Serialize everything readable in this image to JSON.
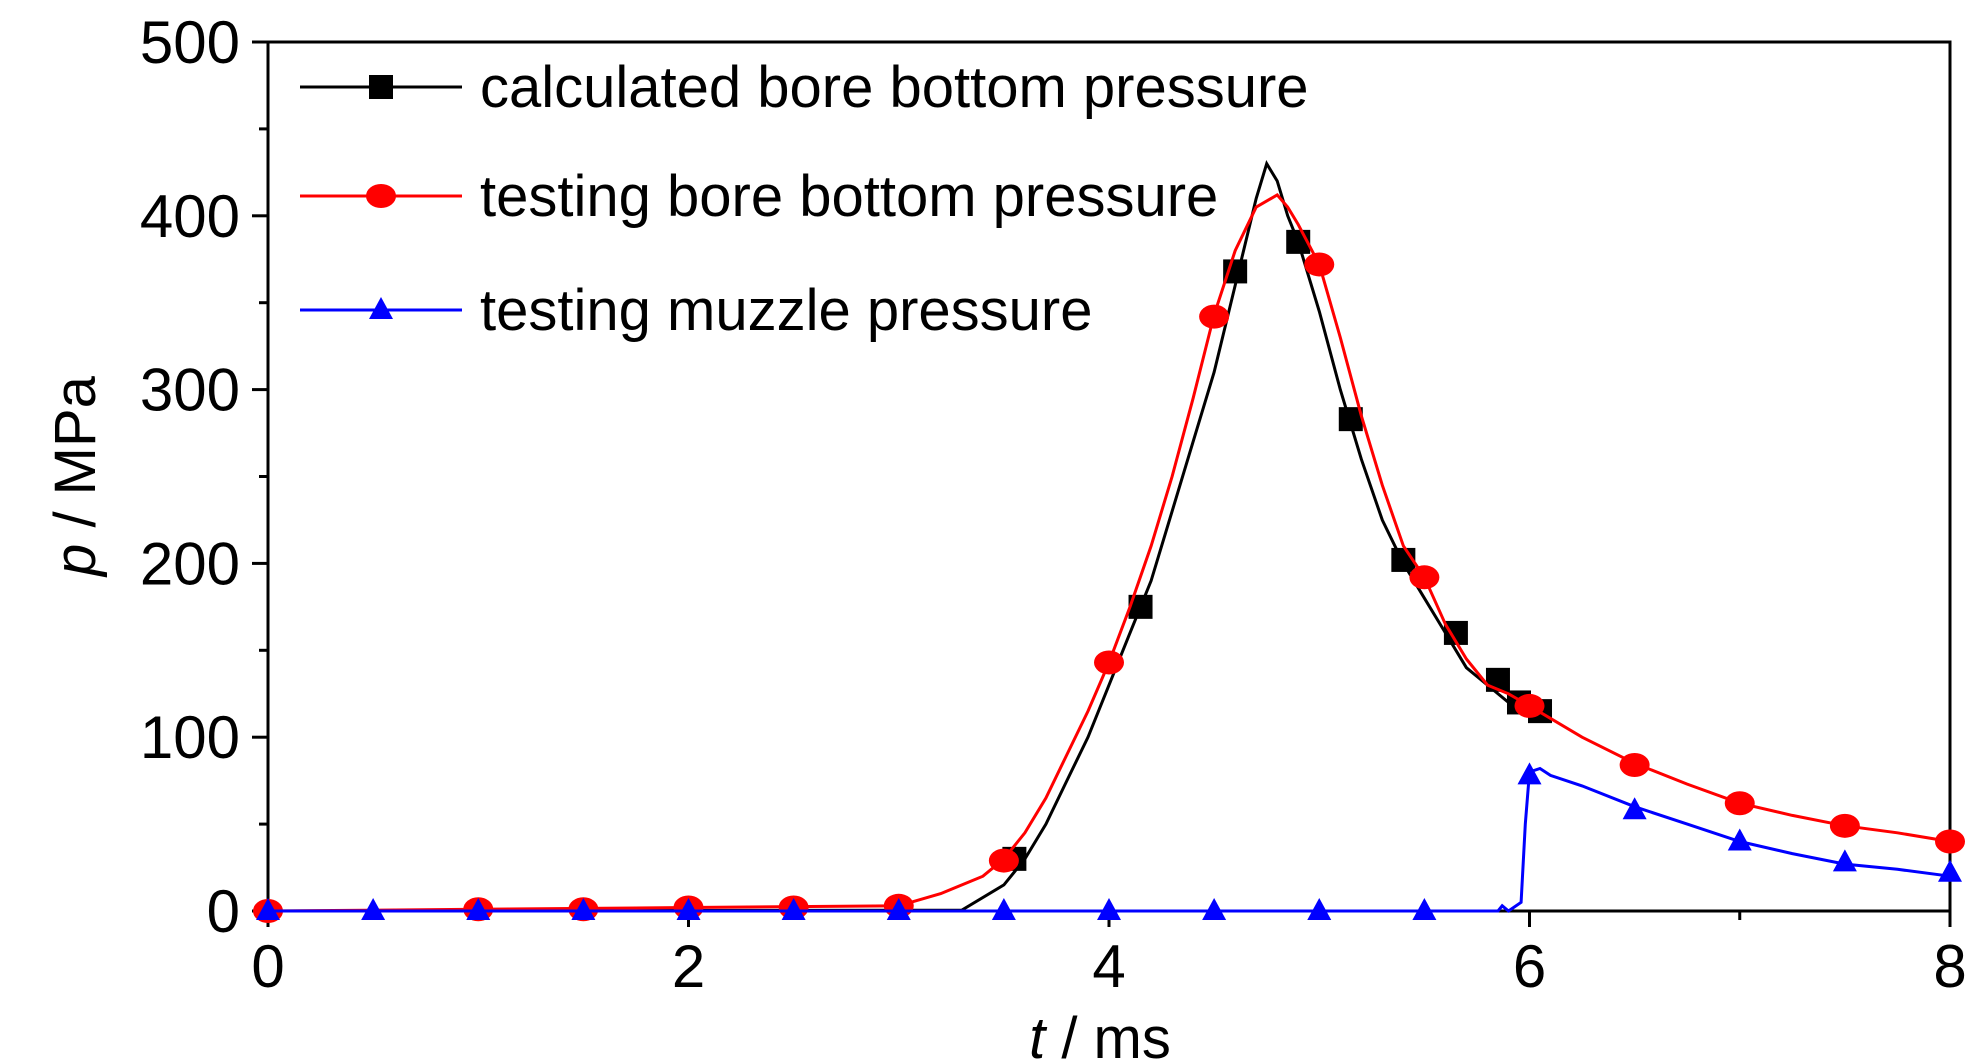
{
  "chart_data": {
    "type": "line",
    "xlabel": {
      "var": "t",
      "unit": " / ms"
    },
    "ylabel": {
      "var": "p",
      "unit": " / MPa"
    },
    "xlim": [
      0,
      8
    ],
    "ylim": [
      0,
      500
    ],
    "x_ticks": [
      "0",
      "2",
      "4",
      "6",
      "8"
    ],
    "y_ticks": [
      "0",
      "100",
      "200",
      "300",
      "400",
      "500"
    ],
    "grid": false,
    "legend_position": "top-left",
    "series": [
      {
        "name": "calculated bore bottom pressure",
        "color": "#000000",
        "marker": "square",
        "line": [
          [
            0,
            0
          ],
          [
            3.3,
            0.5
          ],
          [
            3.5,
            15
          ],
          [
            3.6,
            30
          ],
          [
            3.7,
            50
          ],
          [
            3.8,
            75
          ],
          [
            3.9,
            100
          ],
          [
            4.0,
            130
          ],
          [
            4.1,
            160
          ],
          [
            4.2,
            190
          ],
          [
            4.3,
            230
          ],
          [
            4.4,
            270
          ],
          [
            4.5,
            310
          ],
          [
            4.6,
            360
          ],
          [
            4.7,
            410
          ],
          [
            4.75,
            430
          ],
          [
            4.8,
            420
          ],
          [
            4.85,
            400
          ],
          [
            4.9,
            385
          ],
          [
            5.0,
            345
          ],
          [
            5.1,
            300
          ],
          [
            5.2,
            260
          ],
          [
            5.3,
            225
          ],
          [
            5.4,
            200
          ],
          [
            5.5,
            180
          ],
          [
            5.6,
            160
          ],
          [
            5.7,
            140
          ],
          [
            5.8,
            130
          ],
          [
            5.9,
            120
          ],
          [
            6.0,
            112
          ]
        ],
        "markers": [
          [
            3.55,
            30
          ],
          [
            4.15,
            175
          ],
          [
            4.6,
            368
          ],
          [
            4.9,
            385
          ],
          [
            5.15,
            283
          ],
          [
            5.4,
            202
          ],
          [
            5.65,
            160
          ],
          [
            5.85,
            133
          ],
          [
            5.95,
            120
          ],
          [
            6.05,
            115
          ]
        ]
      },
      {
        "name": "testing bore bottom pressure",
        "color": "#ff0000",
        "marker": "circle",
        "line": [
          [
            0,
            0
          ],
          [
            1,
            1
          ],
          [
            2,
            2
          ],
          [
            3,
            3
          ],
          [
            3.2,
            10
          ],
          [
            3.4,
            20
          ],
          [
            3.5,
            30
          ],
          [
            3.6,
            45
          ],
          [
            3.7,
            65
          ],
          [
            3.8,
            90
          ],
          [
            3.9,
            115
          ],
          [
            4.0,
            143
          ],
          [
            4.1,
            175
          ],
          [
            4.2,
            210
          ],
          [
            4.3,
            250
          ],
          [
            4.4,
            295
          ],
          [
            4.5,
            343
          ],
          [
            4.6,
            380
          ],
          [
            4.7,
            405
          ],
          [
            4.8,
            412
          ],
          [
            4.85,
            405
          ],
          [
            4.9,
            395
          ],
          [
            5.0,
            372
          ],
          [
            5.1,
            330
          ],
          [
            5.2,
            285
          ],
          [
            5.3,
            245
          ],
          [
            5.4,
            210
          ],
          [
            5.5,
            192
          ],
          [
            5.6,
            165
          ],
          [
            5.7,
            145
          ],
          [
            5.8,
            130
          ],
          [
            5.9,
            125
          ],
          [
            6.0,
            118
          ],
          [
            6.25,
            100
          ],
          [
            6.5,
            85
          ],
          [
            6.75,
            73
          ],
          [
            7.0,
            62
          ],
          [
            7.25,
            55
          ],
          [
            7.5,
            49
          ],
          [
            7.75,
            45
          ],
          [
            8.0,
            40
          ]
        ],
        "markers": [
          [
            0,
            0
          ],
          [
            1,
            1
          ],
          [
            1.5,
            1
          ],
          [
            2,
            2
          ],
          [
            2.5,
            2
          ],
          [
            3,
            3
          ],
          [
            3.5,
            29
          ],
          [
            4,
            143
          ],
          [
            4.5,
            342
          ],
          [
            5,
            372
          ],
          [
            5.5,
            192
          ],
          [
            6,
            118
          ],
          [
            6.5,
            84
          ],
          [
            7,
            62
          ],
          [
            7.5,
            49
          ],
          [
            8,
            40
          ]
        ]
      },
      {
        "name": "testing muzzle pressure",
        "color": "#0000ff",
        "marker": "triangle",
        "line": [
          [
            0,
            0
          ],
          [
            5.85,
            0
          ],
          [
            5.87,
            3
          ],
          [
            5.9,
            0
          ],
          [
            5.96,
            5
          ],
          [
            5.98,
            50
          ],
          [
            6.0,
            80
          ],
          [
            6.05,
            82
          ],
          [
            6.1,
            78
          ],
          [
            6.25,
            72
          ],
          [
            6.5,
            60
          ],
          [
            6.75,
            50
          ],
          [
            7.0,
            40
          ],
          [
            7.25,
            33
          ],
          [
            7.5,
            27
          ],
          [
            7.75,
            24
          ],
          [
            8.0,
            20
          ]
        ],
        "markers": [
          [
            0,
            0
          ],
          [
            0.5,
            0
          ],
          [
            1,
            0
          ],
          [
            1.5,
            0
          ],
          [
            2,
            0
          ],
          [
            2.5,
            0
          ],
          [
            3,
            0
          ],
          [
            3.5,
            0
          ],
          [
            4,
            0
          ],
          [
            4.5,
            0
          ],
          [
            5,
            0
          ],
          [
            5.5,
            0
          ],
          [
            6,
            78
          ],
          [
            6.5,
            58
          ],
          [
            7,
            40
          ],
          [
            7.5,
            28
          ],
          [
            8,
            22
          ]
        ]
      }
    ]
  }
}
